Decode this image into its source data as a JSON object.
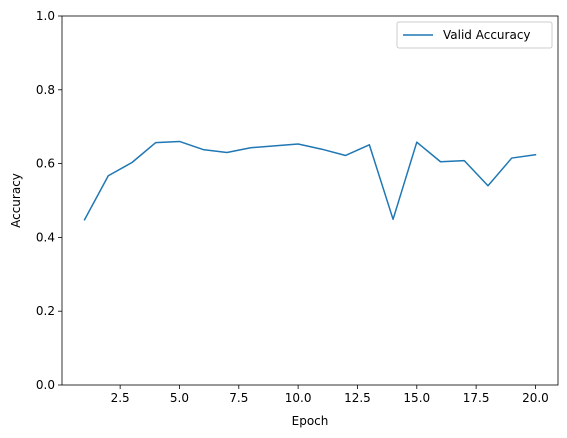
{
  "chart_data": {
    "type": "line",
    "title": "",
    "xlabel": "Epoch",
    "ylabel": "Accuracy",
    "xlim": [
      0.05,
      20.95
    ],
    "ylim": [
      0.0,
      1.0
    ],
    "x_ticks": [
      2.5,
      5.0,
      7.5,
      10.0,
      12.5,
      15.0,
      17.5,
      20.0
    ],
    "x_tick_labels": [
      "2.5",
      "5.0",
      "7.5",
      "10.0",
      "12.5",
      "15.0",
      "17.5",
      "20.0"
    ],
    "y_ticks": [
      0.0,
      0.2,
      0.4,
      0.6,
      0.8,
      1.0
    ],
    "y_tick_labels": [
      "0.0",
      "0.2",
      "0.4",
      "0.6",
      "0.8",
      "1.0"
    ],
    "grid": false,
    "legend_position": "top-right",
    "series": [
      {
        "name": "Valid Accuracy",
        "color": "#1f77b4",
        "x": [
          1,
          2,
          3,
          4,
          5,
          6,
          7,
          8,
          9,
          10,
          11,
          12,
          13,
          14,
          15,
          16,
          17,
          18,
          19,
          20
        ],
        "y": [
          0.448,
          0.567,
          0.603,
          0.657,
          0.66,
          0.638,
          0.63,
          0.643,
          0.648,
          0.653,
          0.639,
          0.622,
          0.651,
          0.449,
          0.658,
          0.605,
          0.608,
          0.54,
          0.615,
          0.624
        ]
      }
    ]
  }
}
